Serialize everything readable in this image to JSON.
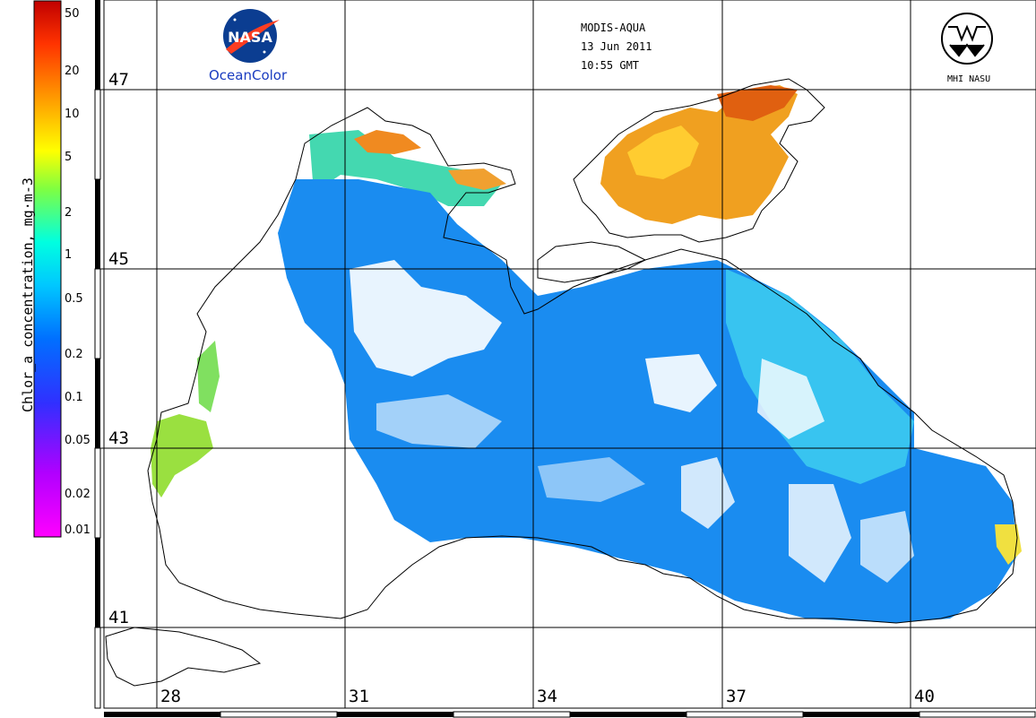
{
  "header": {
    "sensor": "MODIS-AQUA",
    "date": "13 Jun 2011",
    "time": "10:55 GMT"
  },
  "logos": {
    "nasa_text": "NASA",
    "oceancolor": "OceanColor",
    "mhi": "MHI NASU"
  },
  "colorbar": {
    "title": "Chlor_a concentration, mg·m-3",
    "ticks": [
      "50",
      "20",
      "10",
      "5",
      "2",
      "1",
      "0.5",
      "0.2",
      "0.1",
      "0.05",
      "0.02",
      "0.01"
    ],
    "colors": [
      "#ff00ff",
      "#9900ff",
      "#2222ff",
      "#00a0ff",
      "#00ffff",
      "#80ff60",
      "#ffff00",
      "#ff8800",
      "#ff2200",
      "#cc0000"
    ]
  },
  "axes": {
    "latitudes": [
      "47",
      "45",
      "43",
      "41"
    ],
    "longitudes": [
      "28",
      "31",
      "34",
      "37",
      "40"
    ]
  }
}
